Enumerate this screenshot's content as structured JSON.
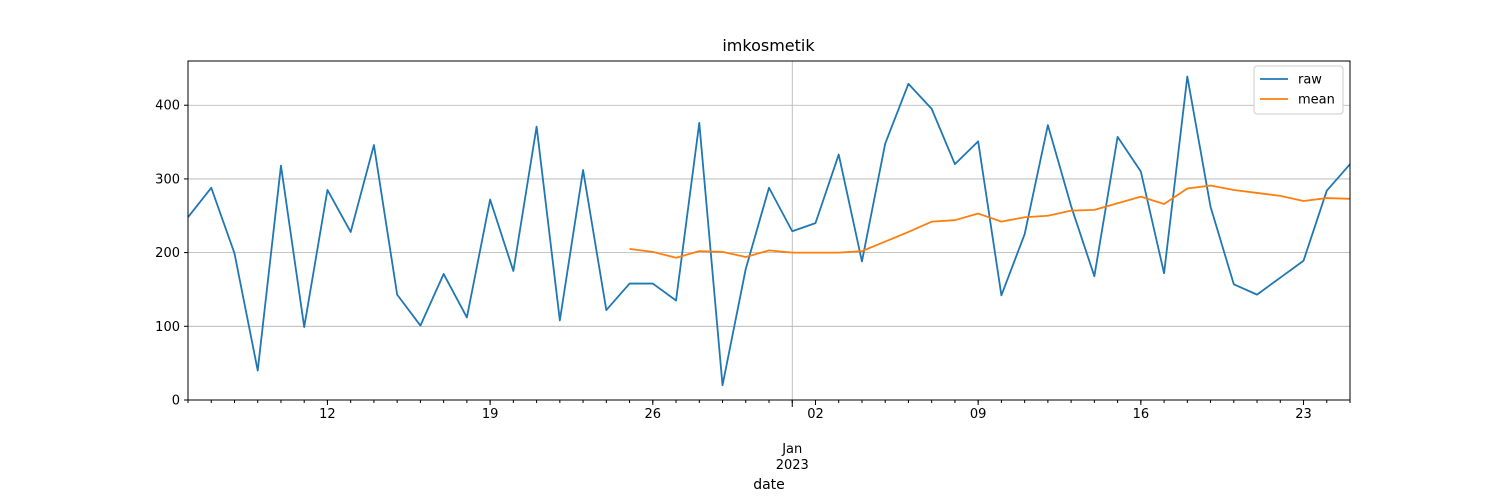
{
  "chart_data": {
    "type": "line",
    "title": "imkosmetik",
    "xlabel": "date",
    "ylabel": "",
    "x": [
      "2022-12-06",
      "2022-12-07",
      "2022-12-08",
      "2022-12-09",
      "2022-12-10",
      "2022-12-11",
      "2022-12-12",
      "2022-12-13",
      "2022-12-14",
      "2022-12-15",
      "2022-12-16",
      "2022-12-17",
      "2022-12-18",
      "2022-12-19",
      "2022-12-20",
      "2022-12-21",
      "2022-12-22",
      "2022-12-23",
      "2022-12-24",
      "2022-12-25",
      "2022-12-26",
      "2022-12-27",
      "2022-12-28",
      "2022-12-29",
      "2022-12-30",
      "2022-12-31",
      "2023-01-01",
      "2023-01-02",
      "2023-01-03",
      "2023-01-04",
      "2023-01-05",
      "2023-01-06",
      "2023-01-07",
      "2023-01-08",
      "2023-01-09",
      "2023-01-10",
      "2023-01-11",
      "2023-01-12",
      "2023-01-13",
      "2023-01-14",
      "2023-01-15",
      "2023-01-16",
      "2023-01-17",
      "2023-01-18",
      "2023-01-19",
      "2023-01-20",
      "2023-01-21",
      "2023-01-22",
      "2023-01-23",
      "2023-01-24",
      "2023-01-25"
    ],
    "xlim": [
      "2022-12-06",
      "2023-01-25"
    ],
    "ylim": [
      0,
      460
    ],
    "series": [
      {
        "name": "raw",
        "color": "#1f77b4",
        "values": [
          248,
          288,
          199,
          40,
          318,
          99,
          285,
          228,
          346,
          143,
          101,
          171,
          112,
          272,
          175,
          371,
          108,
          312,
          122,
          158,
          158,
          135,
          376,
          20,
          178,
          288,
          229,
          240,
          333,
          188,
          348,
          429,
          395,
          320,
          351,
          142,
          225,
          373,
          263,
          168,
          357,
          310,
          172,
          439,
          262,
          157,
          143,
          166,
          189,
          284,
          320
        ]
      },
      {
        "name": "mean",
        "color": "#ff7f0e",
        "values": [
          null,
          null,
          null,
          null,
          null,
          null,
          null,
          null,
          null,
          null,
          null,
          null,
          null,
          null,
          null,
          null,
          null,
          null,
          null,
          205,
          201,
          193,
          202,
          201,
          194,
          203,
          200,
          200,
          200,
          202,
          215,
          228,
          242,
          244,
          253,
          242,
          248,
          250,
          257,
          258,
          267,
          276,
          266,
          287,
          291,
          285,
          281,
          277,
          270,
          274,
          273
        ]
      }
    ],
    "x_ticks_major": [
      {
        "date": "2022-12-12",
        "label": "12"
      },
      {
        "date": "2022-12-19",
        "label": "19"
      },
      {
        "date": "2022-12-26",
        "label": "26"
      },
      {
        "date": "2023-01-02",
        "label": "02"
      },
      {
        "date": "2023-01-09",
        "label": "09"
      },
      {
        "date": "2023-01-16",
        "label": "16"
      },
      {
        "date": "2023-01-23",
        "label": "23"
      }
    ],
    "x_month_tick": {
      "date": "2023-01-01",
      "label_line1": "Jan",
      "label_line2": "2023"
    },
    "y_ticks": [
      0,
      100,
      200,
      300,
      400
    ],
    "grid": true,
    "legend_position": "top-right"
  }
}
